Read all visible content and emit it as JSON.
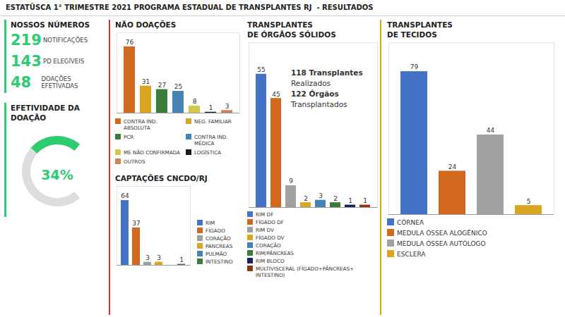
{
  "title": "ESTATÜSCA 1° TRIMESTRE 2021 PROGRAMA ESTADUAL DE TRANSPLANTES RJ  - RESULTADOS",
  "chart_data": [
    {
      "type": "kpi",
      "title": "NOSSOS NÚMEROS",
      "categories": [
        "NOTIFICAÇÕES",
        "PD ELEGÍVEIS",
        "DOAÇÕES EFETIVADAS"
      ],
      "values": [
        219,
        143,
        48
      ],
      "color": "#2ECC71"
    },
    {
      "type": "gauge",
      "title": "EFETIVIDADE DA DOAÇÃO",
      "values": [
        34
      ],
      "value_labels": [
        "34%"
      ],
      "ylim": [
        0,
        100
      ],
      "color": "#2ECC71"
    },
    {
      "type": "bar",
      "title": "NÃO DOAÇÕES",
      "categories": [
        "CONTRA IND. ABSOLUTA",
        "NEG. FAMILIAR",
        "PCR",
        "CONTRA IND. MÉDICA",
        "ME NÃO CONFIRMADA",
        "LOGÍSTICA",
        "OUTROS"
      ],
      "values": [
        76,
        31,
        27,
        25,
        8,
        1,
        3
      ],
      "colors": [
        "#D2691E",
        "#DAA520",
        "#3A7D3A",
        "#4682B4",
        "#D4C84A",
        "#1A1A1A",
        "#C8855A"
      ],
      "ylim": [
        0,
        92
      ],
      "data_labels": true,
      "tick_labels": false,
      "legend": "bottom"
    },
    {
      "type": "bar",
      "title": "CAPTAÇÕES CNCDO/RJ",
      "categories": [
        "RIM",
        "FÍGADO",
        "CORAÇÃO",
        "PANCREAS",
        "PULMÃO",
        "INTESTINO"
      ],
      "values": [
        64,
        37,
        3,
        3,
        0,
        1
      ],
      "value_labels": [
        "64",
        "37",
        "3",
        "3",
        null,
        "1"
      ],
      "colors": [
        "#4472C4",
        "#D2691E",
        "#A0A0A0",
        "#DAA520",
        "#4682B4",
        "#3A7D3A"
      ],
      "ylim": [
        0,
        78
      ],
      "data_labels": true,
      "tick_labels": false,
      "legend": "right"
    },
    {
      "type": "bar",
      "title": "TRANSPLANTES",
      "subtitle": "DE ÓRGÃOS SÓLIDOS",
      "categories": [
        "RIM DF",
        "FÍGADO DF",
        "RIM DV",
        "FÍGADO DV",
        "CORAÇÃO",
        "RIM/PÂNCREAS",
        "RIM BLOCO",
        "MULTIVISCERAL (FÍGADO+PÂNCREAS+ INTESTINO)"
      ],
      "values": [
        55,
        45,
        9,
        2,
        3,
        2,
        1,
        1
      ],
      "colors": [
        "#4472C4",
        "#D2691E",
        "#A0A0A0",
        "#DAA520",
        "#4682B4",
        "#3A7D3A",
        "#1A2060",
        "#8B3A0F"
      ],
      "annotations": [
        "118 Transplantes",
        "Realizados",
        "122 Órgãos",
        "Transplantados"
      ],
      "ylim": [
        0,
        68
      ],
      "data_labels": true,
      "tick_labels": false,
      "legend": "bottom"
    },
    {
      "type": "bar",
      "title": "TRANSPLANTES",
      "subtitle": "DE TECIDOS",
      "categories": [
        "CÓRNEA",
        "MEDULA ÓSSEA ALOGÊNICO",
        "MEDULA ÓSSEA AUTÓLOGO",
        "ESCLERA"
      ],
      "values": [
        79,
        24,
        44,
        5
      ],
      "colors": [
        "#4472C4",
        "#D2691E",
        "#A0A0A0",
        "#DAA520"
      ],
      "ylim": [
        0,
        95
      ],
      "data_labels": true,
      "tick_labels": false,
      "legend": "bottom"
    }
  ]
}
